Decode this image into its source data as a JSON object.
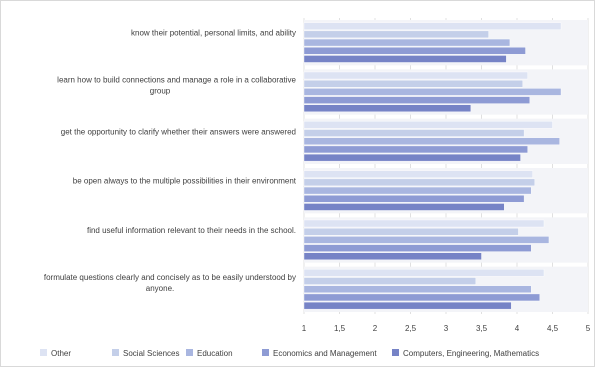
{
  "chart_data": {
    "type": "bar",
    "orientation": "horizontal",
    "categories": [
      [
        "know their potential, personal limits, and ability"
      ],
      [
        "learn how to build connections and manage a role in a collaborative",
        "group"
      ],
      [
        "get the opportunity to clarify whether their answers were answered"
      ],
      [
        "be open always to the multiple possibilities in their environment"
      ],
      [
        "find useful information relevant to their needs in the school."
      ],
      [
        "formulate questions clearly and concisely as to be easily understood by",
        "anyone."
      ]
    ],
    "series": [
      {
        "name": "Other",
        "color": "#dde3f3",
        "values": [
          4.62,
          4.15,
          4.5,
          4.22,
          4.38,
          4.38
        ]
      },
      {
        "name": "Social Sciences",
        "color": "#c4cfe9",
        "values": [
          3.6,
          4.08,
          4.1,
          4.25,
          4.02,
          3.42
        ]
      },
      {
        "name": "Education",
        "color": "#a9b6e0",
        "values": [
          3.9,
          4.62,
          4.6,
          4.2,
          4.45,
          4.2
        ]
      },
      {
        "name": "Economics and Management",
        "color": "#8e9bd4",
        "values": [
          4.12,
          4.18,
          4.15,
          4.1,
          4.2,
          4.32
        ]
      },
      {
        "name": "Computers, Engineering, Mathematics",
        "color": "#7683c6",
        "values": [
          3.85,
          3.35,
          4.05,
          3.82,
          3.5,
          3.92
        ]
      }
    ],
    "x_ticks": [
      "1",
      "1,5",
      "2",
      "2,5",
      "3",
      "3,5",
      "4",
      "4,5",
      "5"
    ],
    "xlim": [
      1,
      5
    ],
    "title": "",
    "xlabel": "",
    "ylabel": "",
    "grid": true,
    "legend_position": "bottom"
  }
}
